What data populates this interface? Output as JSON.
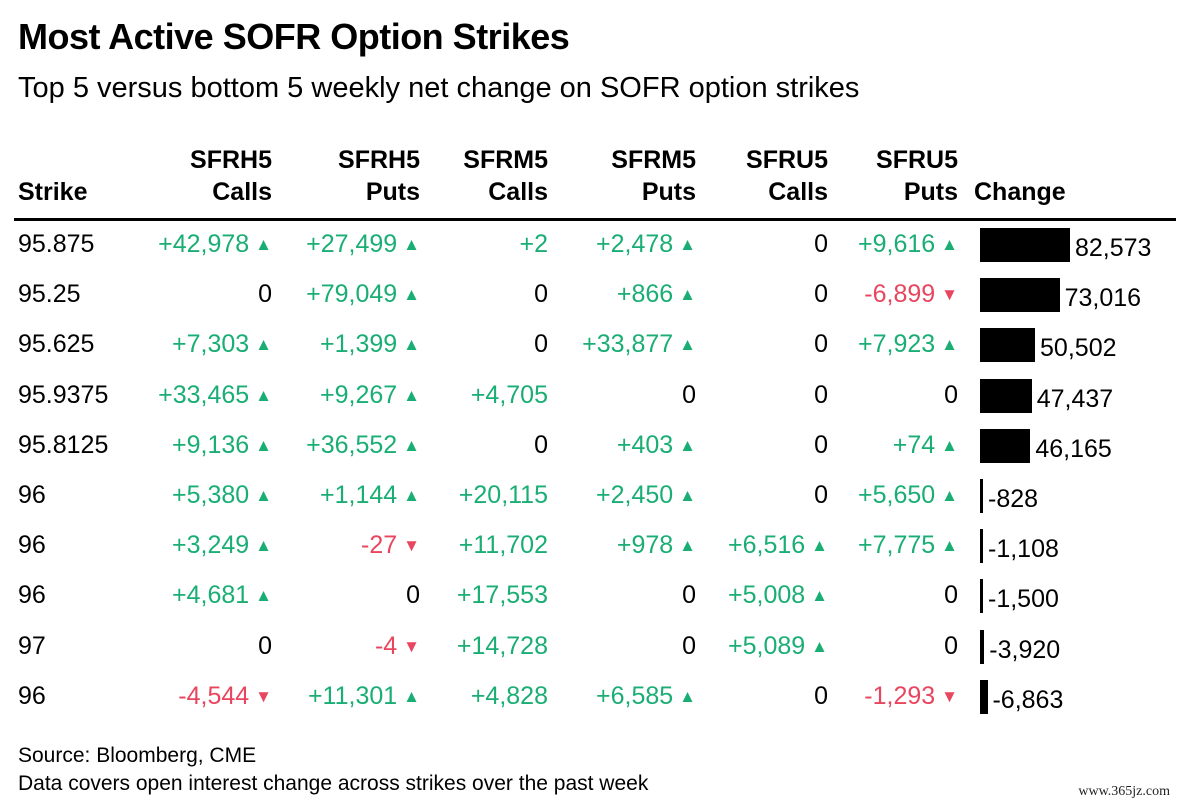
{
  "title": "Most Active SOFR Option Strikes",
  "subtitle": "Top 5 versus bottom 5 weekly net change on SOFR option strikes",
  "footer": {
    "source": "Source: Bloomberg, CME",
    "note": "Data covers open interest change across strikes over the past week"
  },
  "watermark": "www.365jz.com",
  "colors": {
    "positive": "#1aae74",
    "negative": "#e8465e",
    "bar": "#000000"
  },
  "chart_data": {
    "type": "table",
    "columns": [
      {
        "key": "strike",
        "line1": "",
        "line2": "Strike"
      },
      {
        "key": "h5c",
        "line1": "SFRH5",
        "line2": "Calls"
      },
      {
        "key": "h5p",
        "line1": "SFRH5",
        "line2": "Puts"
      },
      {
        "key": "m5c",
        "line1": "SFRM5",
        "line2": "Calls"
      },
      {
        "key": "m5p",
        "line1": "SFRM5",
        "line2": "Puts"
      },
      {
        "key": "u5c",
        "line1": "SFRU5",
        "line2": "Calls"
      },
      {
        "key": "u5p",
        "line1": "SFRU5",
        "line2": "Puts"
      },
      {
        "key": "change",
        "line1": "",
        "line2": "Change"
      }
    ],
    "rows": [
      {
        "strike": "95.875",
        "h5c": "+42,978",
        "h5p": "+27,499",
        "m5c": "+2",
        "m5p": "+2,478",
        "u5c": "0",
        "u5p": "+9,616",
        "change": "82,573"
      },
      {
        "strike": "95.25",
        "h5c": "0",
        "h5p": "+79,049",
        "m5c": "0",
        "m5p": "+866",
        "u5c": "0",
        "u5p": "-6,899",
        "change": "73,016"
      },
      {
        "strike": "95.625",
        "h5c": "+7,303",
        "h5p": "+1,399",
        "m5c": "0",
        "m5p": "+33,877",
        "u5c": "0",
        "u5p": "+7,923",
        "change": "50,502"
      },
      {
        "strike": "95.9375",
        "h5c": "+33,465",
        "h5p": "+9,267",
        "m5c": "+4,705",
        "m5p": "0",
        "u5c": "0",
        "u5p": "0",
        "change": "47,437"
      },
      {
        "strike": "95.8125",
        "h5c": "+9,136",
        "h5p": "+36,552",
        "m5c": "0",
        "m5p": "+403",
        "u5c": "0",
        "u5p": "+74",
        "change": "46,165"
      },
      {
        "strike": "96",
        "h5c": "+5,380",
        "h5p": "+1,144",
        "m5c": "+20,115",
        "m5p": "+2,450",
        "u5c": "0",
        "u5p": "+5,650",
        "change": "-828"
      },
      {
        "strike": "96",
        "h5c": "+3,249",
        "h5p": "-27",
        "m5c": "+11,702",
        "m5p": "+978",
        "u5c": "+6,516",
        "u5p": "+7,775",
        "change": "-1,108"
      },
      {
        "strike": "96",
        "h5c": "+4,681",
        "h5p": "0",
        "m5c": "+17,553",
        "m5p": "0",
        "u5c": "+5,008",
        "u5p": "0",
        "change": "-1,500"
      },
      {
        "strike": "97",
        "h5c": "0",
        "h5p": "-4",
        "m5c": "+14,728",
        "m5p": "0",
        "u5c": "+5,089",
        "u5p": "0",
        "change": "-3,920"
      },
      {
        "strike": "96",
        "h5c": "-4,544",
        "h5p": "+11,301",
        "m5c": "+4,828",
        "m5p": "+6,585",
        "u5c": "0",
        "u5p": "-1,293",
        "change": "-6,863"
      }
    ],
    "arrows": {
      "m5c": false
    },
    "change_values": [
      82573,
      73016,
      50502,
      47437,
      46165,
      -828,
      -1108,
      -1500,
      -3920,
      -6863
    ],
    "bar_max": 82573
  }
}
